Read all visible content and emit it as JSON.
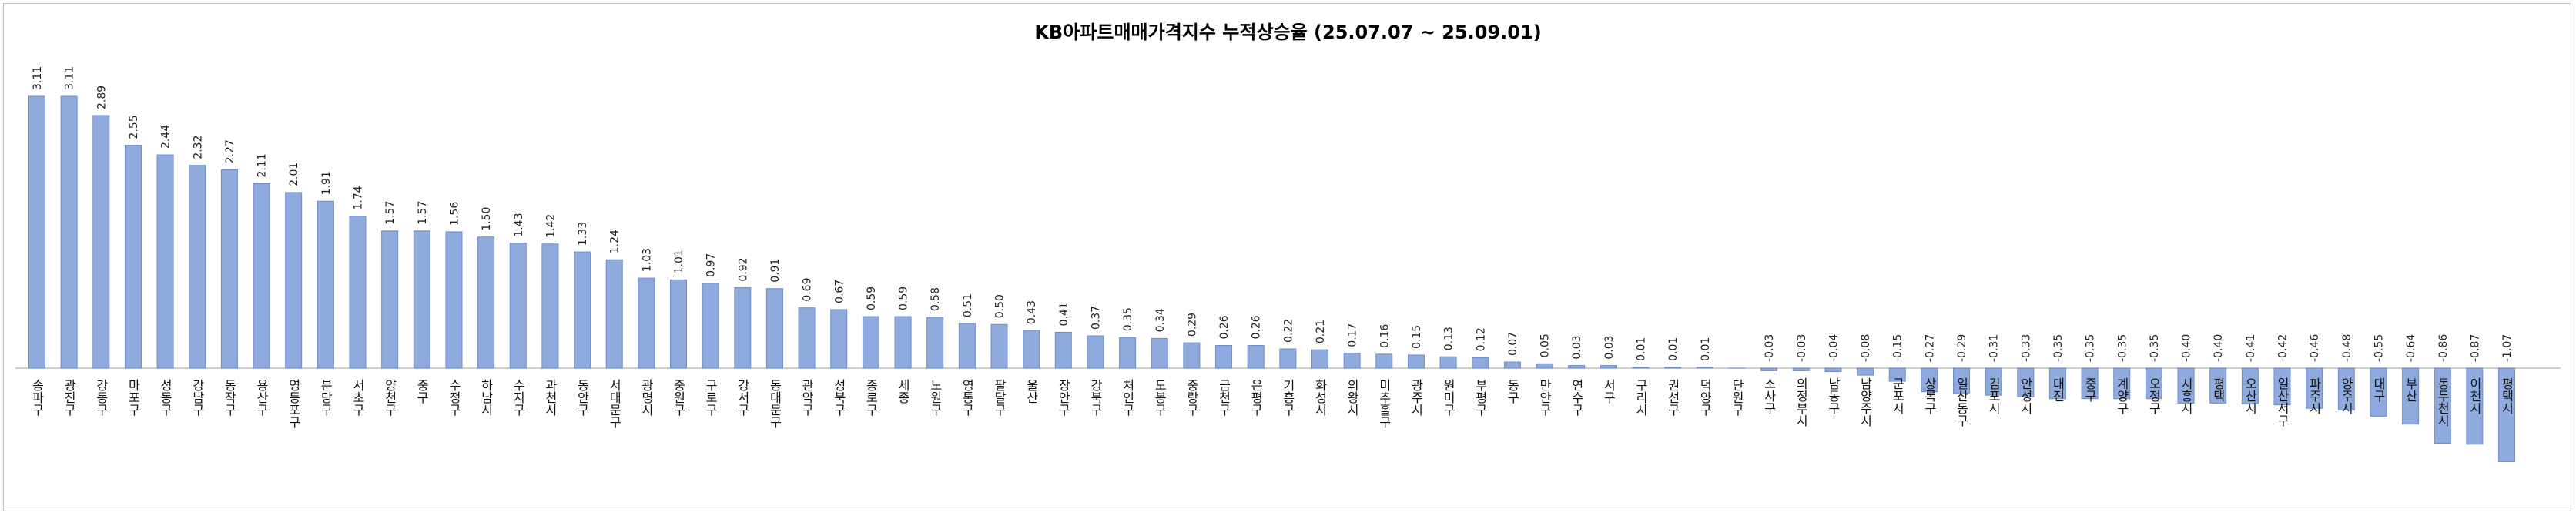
{
  "chart_data": {
    "type": "bar",
    "title": "KB아파트매매가격지수 누적상승율 (25.07.07 ~ 25.09.01)",
    "xlabel": "",
    "ylabel": "",
    "categories": [
      "송파구",
      "광진구",
      "강동구",
      "마포구",
      "성동구",
      "강남구",
      "동작구",
      "용산구",
      "영등포구",
      "분당구",
      "서초구",
      "양천구",
      "중구",
      "수정구",
      "하남시",
      "수지구",
      "과천시",
      "동안구",
      "서대문구",
      "광명시",
      "중원구",
      "구로구",
      "강서구",
      "동대문구",
      "관악구",
      "성북구",
      "종로구",
      "세종",
      "노원구",
      "영통구",
      "팔달구",
      "울산",
      "장안구",
      "강북구",
      "처인구",
      "도봉구",
      "중랑구",
      "금천구",
      "은평구",
      "기흥구",
      "화성시",
      "의왕시",
      "미추홀구",
      "광주시",
      "원미구",
      "부평구",
      "동구",
      "만안구",
      "연수구",
      "서구",
      "구리시",
      "권선구",
      "덕양구",
      "단원구",
      "소사구",
      "의정부시",
      "남동구",
      "남양주시",
      "군포시",
      "상록구",
      "일산동구",
      "김포시",
      "안성시",
      "대전",
      "중구",
      "계양구",
      "오정구",
      "시흥시",
      "평택",
      "오산시",
      "일산서구",
      "파주시",
      "양주시",
      "대구",
      "부산",
      "동두천시",
      "이천시",
      "평택시"
    ],
    "values": [
      3.11,
      3.11,
      2.89,
      2.55,
      2.44,
      2.32,
      2.27,
      2.11,
      2.01,
      1.91,
      1.74,
      1.57,
      1.57,
      1.56,
      1.5,
      1.43,
      1.42,
      1.33,
      1.24,
      1.03,
      1.01,
      0.97,
      0.92,
      0.91,
      0.69,
      0.67,
      0.59,
      0.59,
      0.58,
      0.51,
      0.5,
      0.43,
      0.41,
      0.37,
      0.35,
      0.34,
      0.29,
      0.26,
      0.26,
      0.22,
      0.21,
      0.17,
      0.16,
      0.15,
      0.13,
      0.12,
      0.07,
      0.05,
      0.03,
      0.03,
      0.01,
      0.01,
      0.01,
      0.0,
      -0.03,
      -0.03,
      -0.04,
      -0.08,
      -0.15,
      -0.27,
      -0.29,
      -0.31,
      -0.33,
      -0.35,
      -0.35,
      -0.35,
      -0.35,
      -0.4,
      -0.4,
      -0.41,
      -0.42,
      -0.46,
      -0.48,
      -0.55,
      -0.64,
      -0.86,
      -0.87,
      -1.07
    ],
    "value_labels": [
      "3.11",
      "3.11",
      "2.89",
      "2.55",
      "2.44",
      "2.32",
      "2.27",
      "2.11",
      "2.01",
      "1.91",
      "1.74",
      "1.57",
      "1.57",
      "1.56",
      "1.50",
      "1.43",
      "1.42",
      "1.33",
      "1.24",
      "1.03",
      "1.01",
      "0.97",
      "0.92",
      "0.91",
      "0.69",
      "0.67",
      "0.59",
      "0.59",
      "0.58",
      "0.51",
      "0.50",
      "0.43",
      "0.41",
      "0.37",
      "0.35",
      "0.34",
      "0.29",
      "0.26",
      "0.26",
      "0.22",
      "0.21",
      "0.17",
      "0.16",
      "0.15",
      "0.13",
      "0.12",
      "0.07",
      "0.05",
      "0.03",
      "0.03",
      "0.01",
      "0.01",
      "0.01",
      "",
      "-0.03",
      "-0.03",
      "-0.04",
      "-0.08",
      "-0.15",
      "-0.27",
      "-0.29",
      "-0.31",
      "-0.33",
      "-0.35",
      "-0.35",
      "-0.35",
      "-0.35",
      "-0.40",
      "-0.40",
      "-0.41",
      "-0.42",
      "-0.46",
      "-0.48",
      "-0.55",
      "-0.64",
      "-0.86",
      "-0.87",
      "-1.07"
    ],
    "ylim": [
      -1.1,
      3.3
    ],
    "grid": false,
    "legend": "none",
    "bar_color": "#8faadc",
    "bar_stroke": "#6f8cc9"
  }
}
